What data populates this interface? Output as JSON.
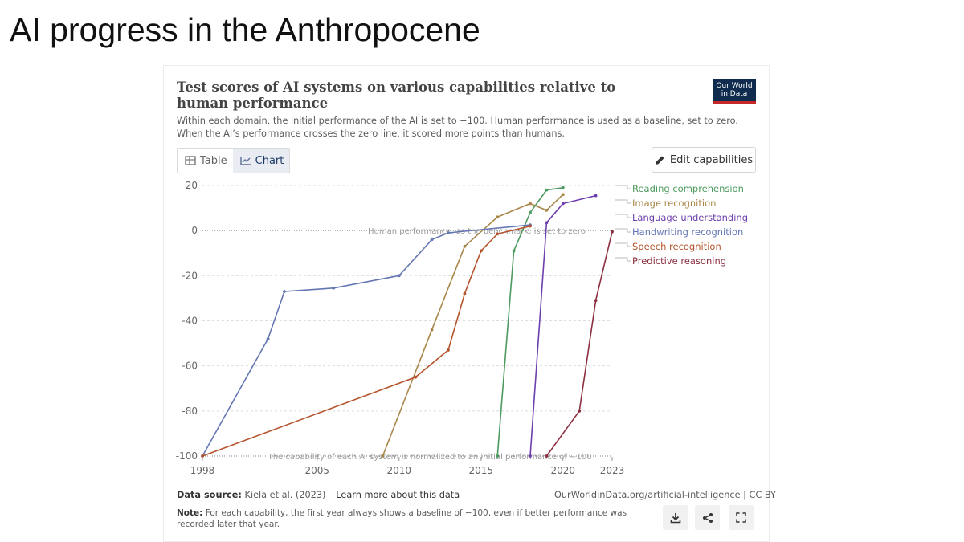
{
  "slide": {
    "title": "AI progress in the Anthropocene"
  },
  "card": {
    "title": "Test scores of AI systems on various capabilities relative to human performance",
    "subtitle": "Within each domain, the initial performance of the AI is set to −100. Human performance is used as a baseline, set to zero. When the AI’s performance crosses the zero line, it scored more points than humans.",
    "logo": {
      "line1": "Our World",
      "line2": "in Data"
    },
    "tabs": [
      {
        "label": "Table"
      },
      {
        "label": "Chart"
      }
    ],
    "edit_button": "Edit capabilities",
    "source_label": "Data source:",
    "source_text": "Kiela et al. (2023) –",
    "source_link": "Learn more about this data",
    "url": "OurWorldinData.org/artificial-intelligence | CC BY",
    "note_label": "Note:",
    "note_text": "For each capability, the first year always shows a baseline of −100, even if better performance was recorded later that year.",
    "icons": [
      "download-icon",
      "share-icon",
      "fullscreen-icon"
    ],
    "colors": {
      "logo_bg": "#0f2b4d",
      "logo_accent": "#c62828",
      "tab_active_bg": "#e9ecf3"
    }
  },
  "chart_data": {
    "type": "line",
    "title": "Test scores of AI systems on various capabilities relative to human performance",
    "xlabel": "",
    "ylabel": "",
    "xlim": [
      1998,
      2023
    ],
    "ylim": [
      -100,
      20
    ],
    "yticks": [
      20,
      0,
      -20,
      -40,
      -60,
      -80,
      -100
    ],
    "ytick_labels": [
      "20",
      "0",
      "-20",
      "-40",
      "-60",
      "-80",
      "-100"
    ],
    "xticks": [
      1998,
      2005,
      2010,
      2015,
      2020,
      2023
    ],
    "xtick_labels": [
      "1998",
      "2005",
      "2010",
      "2015",
      "2020",
      "2023"
    ],
    "annotations": {
      "human_line": "Human performance, as the benchmark, is set to zero",
      "baseline_line": "The capability of each AI system is normalized to an initial performance of −100"
    },
    "series": [
      {
        "name": "Reading comprehension",
        "color": "#4c9a5e",
        "x": [
          2016,
          2017,
          2018,
          2019,
          2020
        ],
        "y": [
          -100,
          -9,
          8,
          18,
          19
        ]
      },
      {
        "name": "Image recognition",
        "color": "#a8864a",
        "x": [
          2009,
          2012,
          2014,
          2016,
          2018,
          2019,
          2020
        ],
        "y": [
          -100,
          -44,
          -7,
          6,
          12,
          9,
          16
        ]
      },
      {
        "name": "Language understanding",
        "color": "#6d3fad",
        "x": [
          2018,
          2019,
          2020,
          2022
        ],
        "y": [
          -100,
          3.5,
          12,
          15.5
        ]
      },
      {
        "name": "Handwriting recognition",
        "color": "#6577b3",
        "x": [
          1998,
          2002,
          2003,
          2006,
          2010,
          2012,
          2013,
          2018
        ],
        "y": [
          -100,
          -48,
          -27,
          -25.5,
          -20,
          -4,
          -1,
          2.5
        ]
      },
      {
        "name": "Speech recognition",
        "color": "#b5542c",
        "x": [
          1998,
          2011,
          2013,
          2014,
          2015,
          2016,
          2018
        ],
        "y": [
          -100,
          -65,
          -53,
          -28,
          -9,
          -1.5,
          2
        ]
      },
      {
        "name": "Predictive reasoning",
        "color": "#8c2f3f",
        "x": [
          2019,
          2021,
          2022,
          2023
        ],
        "y": [
          -100,
          -80,
          -31,
          -0.5
        ]
      }
    ]
  }
}
